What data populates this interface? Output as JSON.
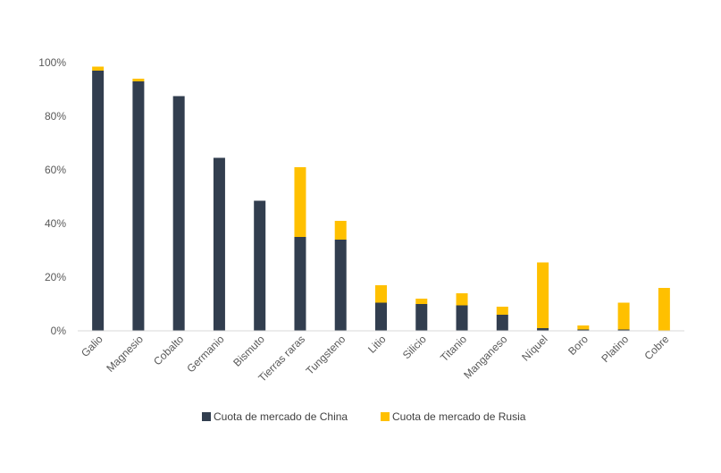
{
  "chart_data": {
    "type": "bar",
    "stacked": true,
    "categories": [
      "Galio",
      "Magnesio",
      "Cobalto",
      "Germanio",
      "Bismuto",
      "Tierras raras",
      "Tungsteno",
      "Litio",
      "Silicio",
      "Titanio",
      "Manganeso",
      "Níquel",
      "Boro",
      "Platino",
      "Cobre"
    ],
    "series": [
      {
        "name": "Cuota de mercado de China",
        "color": "#323e4f",
        "values": [
          97,
          93,
          87.5,
          64.5,
          48.5,
          35,
          34,
          10.5,
          10,
          9.5,
          6,
          1,
          0.5,
          0.5,
          0
        ]
      },
      {
        "name": "Cuota de mercado de Rusia",
        "color": "#ffc000",
        "values": [
          1.5,
          1,
          0,
          0,
          0,
          26,
          7,
          6.5,
          2,
          4.5,
          3,
          24.5,
          1.5,
          10,
          16
        ]
      }
    ],
    "yticks": [
      "0%",
      "20%",
      "40%",
      "60%",
      "80%",
      "100%"
    ],
    "ylim": [
      0,
      100
    ],
    "grid": false,
    "legend_position": "bottom"
  }
}
